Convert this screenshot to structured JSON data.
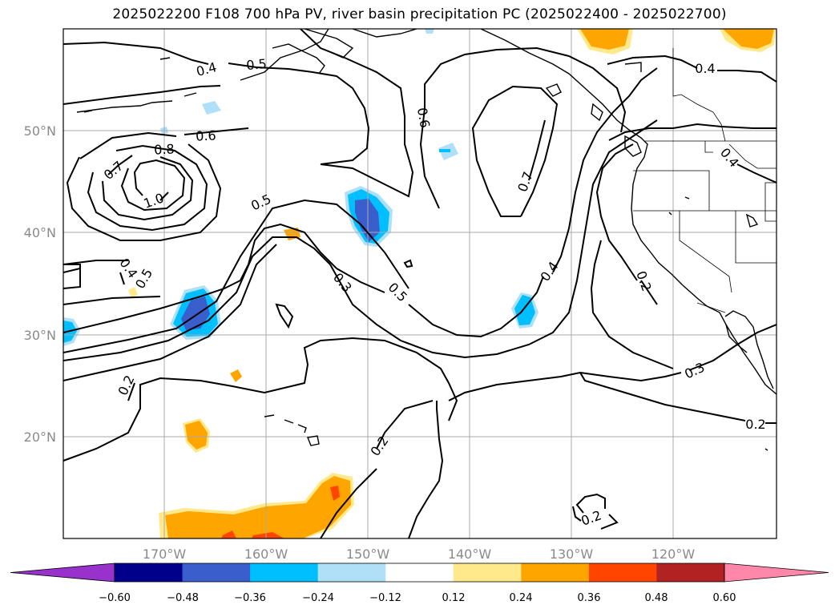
{
  "title": "2025022200 F108 700 hPa PV, river basin precipitation PC (2025022400 - 2025022700)",
  "map": {
    "lat_ticks": [
      "20°N",
      "30°N",
      "40°N",
      "50°N"
    ],
    "lon_ticks": [
      "170°W",
      "160°W",
      "150°W",
      "140°W",
      "130°W",
      "120°W"
    ],
    "grid": true
  },
  "contour_labels": [
    "0.4",
    "0.5",
    "0.6",
    "0.8",
    "0.7",
    "1.0",
    "0.5",
    "0.4",
    "0.5",
    "0.6",
    "0.7",
    "0.4",
    "0.3",
    "0.5",
    "0.2",
    "0.2",
    "0.2",
    "0.4",
    "0.2",
    "0.3",
    "0.2",
    "0.4"
  ],
  "colorbar": {
    "ticks": [
      "−0.60",
      "−0.48",
      "−0.36",
      "−0.24",
      "−0.12",
      "0.12",
      "0.24",
      "0.36",
      "0.48",
      "0.60"
    ],
    "colors": [
      "#9932cc",
      "#00008b",
      "#3a5fcd",
      "#00bfff",
      "#afe0f8",
      "#ffffff",
      "#ffe98a",
      "#ffa500",
      "#ff4500",
      "#b22222",
      "#ff88aa"
    ],
    "extend": "both"
  }
}
